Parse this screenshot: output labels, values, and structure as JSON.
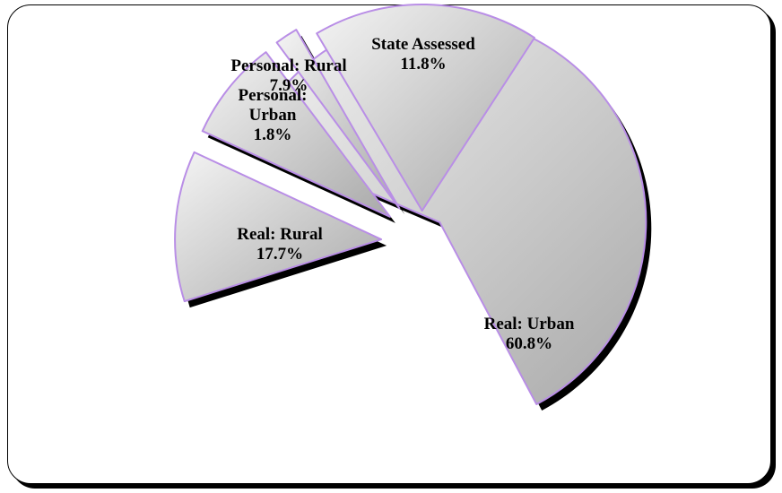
{
  "chart_data": {
    "type": "pie",
    "exploded": true,
    "slices": [
      {
        "label": "Real: Urban",
        "value": 60.8,
        "value_label": "60.8%"
      },
      {
        "label": "Real: Rural",
        "value": 17.7,
        "value_label": "17.7%"
      },
      {
        "label": "Personal: Urban",
        "value": 1.8,
        "value_label": "1.8%"
      },
      {
        "label": "Personal: Rural",
        "value": 7.9,
        "value_label": "7.9%"
      },
      {
        "label": "State Assessed",
        "value": 11.8,
        "value_label": "11.8%"
      }
    ],
    "colors": {
      "fill_light": "#f4f4f4",
      "fill_dark": "#a9a9a9",
      "edge": "#b98ee6",
      "shadow": "#000000"
    },
    "legend": "none",
    "title": ""
  }
}
